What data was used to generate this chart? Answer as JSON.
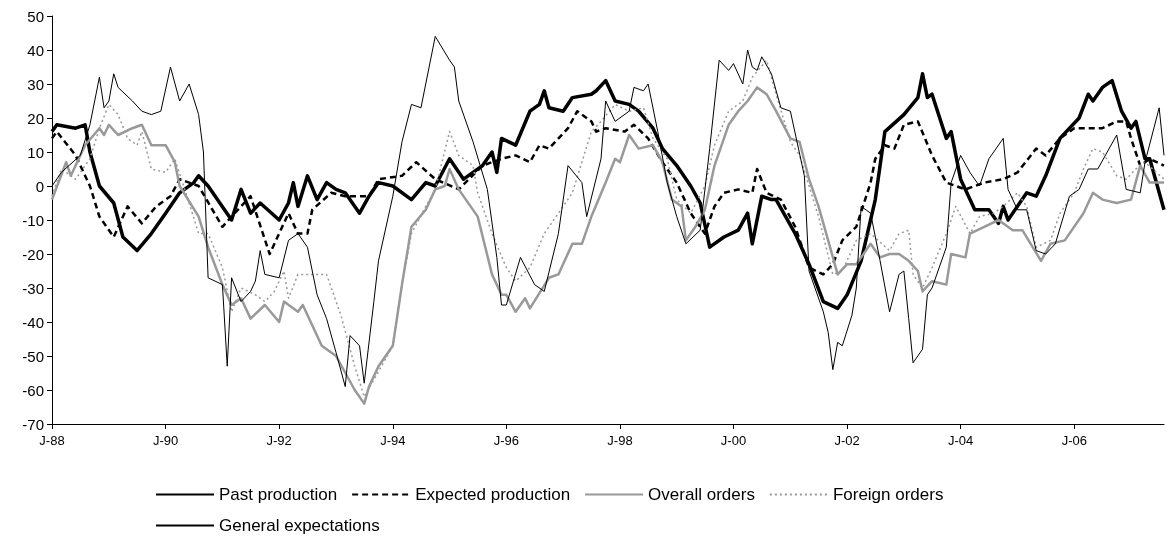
{
  "chart_data": {
    "type": "line",
    "xlim": [
      "1988-01",
      "2007-08"
    ],
    "xticks": [
      {
        "value": "1988-01",
        "label": "J-88"
      },
      {
        "value": "1990-01",
        "label": "J-90"
      },
      {
        "value": "1992-01",
        "label": "J-92"
      },
      {
        "value": "1994-01",
        "label": "J-94"
      },
      {
        "value": "1996-01",
        "label": "J-96"
      },
      {
        "value": "1998-01",
        "label": "J-98"
      },
      {
        "value": "2000-01",
        "label": "J-00"
      },
      {
        "value": "2002-01",
        "label": "J-02"
      },
      {
        "value": "2004-01",
        "label": "J-04"
      },
      {
        "value": "2006-01",
        "label": "J-06"
      }
    ],
    "ylim": [
      -70,
      50
    ],
    "yticks": [
      -70,
      -60,
      -50,
      -40,
      -30,
      -20,
      -10,
      0,
      10,
      20,
      30,
      40,
      50
    ],
    "grid": false,
    "legend": "bottom",
    "marker": "none",
    "series": [
      {
        "name": "Past production",
        "color": "#000000",
        "line_style": "solid",
        "x": [
          "1988-01",
          "1988-02",
          "1988-06",
          "1988-08",
          "1988-09",
          "1988-11",
          "1989-02",
          "1989-04",
          "1989-07",
          "1989-10",
          "1990-01",
          "1990-04",
          "1990-07",
          "1990-08",
          "1990-10",
          "1991-03",
          "1991-05",
          "1991-07",
          "1991-09",
          "1992-01",
          "1992-03",
          "1992-04",
          "1992-05",
          "1992-07",
          "1992-09",
          "1992-11",
          "1993-01",
          "1993-03",
          "1993-06",
          "1993-08",
          "1993-10",
          "1994-01",
          "1994-05",
          "1994-08",
          "1994-10",
          "1995-01",
          "1995-04",
          "1995-08",
          "1995-10",
          "1995-11",
          "1995-12",
          "1996-03",
          "1996-06",
          "1996-08",
          "1996-09",
          "1996-10",
          "1997-01",
          "1997-03",
          "1997-07",
          "1997-08",
          "1997-10",
          "1997-12",
          "1998-03",
          "1998-05",
          "1998-08",
          "1998-10",
          "1999-01",
          "1999-04",
          "1999-06",
          "1999-08",
          "1999-11",
          "2000-02",
          "2000-04",
          "2000-05",
          "2000-07",
          "2000-09",
          "2000-10",
          "2001-02",
          "2001-05",
          "2001-08",
          "2001-11",
          "2002-01",
          "2002-04",
          "2002-07",
          "2002-09",
          "2003-01",
          "2003-04",
          "2003-05",
          "2003-06",
          "2003-07",
          "2003-10",
          "2003-11",
          "2004-01",
          "2004-04",
          "2004-07",
          "2004-09",
          "2004-10",
          "2004-11",
          "2005-03",
          "2005-05",
          "2005-07",
          "2005-10",
          "2006-02",
          "2006-04",
          "2006-05",
          "2006-07",
          "2006-09",
          "2006-11",
          "2007-01",
          "2007-02",
          "2007-04",
          "2007-05",
          "2007-08"
        ],
        "values": [
          16,
          18,
          17,
          18,
          10,
          0,
          -5,
          -15,
          -19,
          -14,
          -8,
          -2,
          1,
          3,
          0,
          -10,
          -1,
          -8,
          -5,
          -10,
          -5,
          1,
          -6,
          3,
          -4,
          1,
          -1,
          -2,
          -8,
          -3,
          1,
          0,
          -4,
          1,
          0,
          8,
          2,
          6,
          10,
          4,
          14,
          12,
          22,
          24,
          28,
          23,
          22,
          26,
          27,
          28,
          31,
          25,
          24,
          22,
          17,
          11,
          6,
          0,
          -5,
          -18,
          -15,
          -13,
          -8,
          -17,
          -3,
          -4,
          -4,
          -14,
          -23,
          -34,
          -36,
          -32,
          -22,
          -4,
          16,
          21,
          26,
          33,
          26,
          27,
          14,
          16,
          2,
          -7,
          -7,
          -11,
          -6,
          -10,
          -2,
          -3,
          3,
          14,
          20,
          27,
          25,
          29,
          31,
          22,
          17,
          19,
          8,
          8,
          -7
        ]
      },
      {
        "name": "Expected production",
        "color": "#000000",
        "line_style": "dashed",
        "x": [
          "1988-01",
          "1988-02",
          "1988-06",
          "1988-09",
          "1988-11",
          "1989-02",
          "1989-05",
          "1989-08",
          "1989-11",
          "1990-02",
          "1990-04",
          "1990-08",
          "1991-01",
          "1991-03",
          "1991-07",
          "1991-11",
          "1992-03",
          "1992-05",
          "1992-07",
          "1992-08",
          "1992-12",
          "1993-03",
          "1993-08",
          "1993-10",
          "1994-03",
          "1994-06",
          "1994-10",
          "1995-03",
          "1995-08",
          "1995-12",
          "1996-03",
          "1996-06",
          "1996-08",
          "1996-10",
          "1997-02",
          "1997-04",
          "1997-07",
          "1997-08",
          "1997-10",
          "1998-02",
          "1998-04",
          "1998-07",
          "1998-10",
          "1999-01",
          "1999-04",
          "1999-07",
          "1999-09",
          "1999-11",
          "2000-02",
          "2000-05",
          "2000-06",
          "2000-08",
          "2000-11",
          "2001-02",
          "2001-05",
          "2001-08",
          "2001-10",
          "2001-12",
          "2002-03",
          "2002-06",
          "2002-07",
          "2002-09",
          "2002-11",
          "2003-01",
          "2003-04",
          "2003-07",
          "2003-10",
          "2004-02",
          "2004-06",
          "2004-10",
          "2005-01",
          "2005-05",
          "2005-07",
          "2005-10",
          "2006-01",
          "2006-05",
          "2006-07",
          "2006-10",
          "2006-12",
          "2007-01",
          "2007-03",
          "2007-05",
          "2007-08"
        ],
        "values": [
          14,
          16,
          9,
          0,
          -9,
          -15,
          -6,
          -11,
          -6,
          -3,
          2,
          0,
          -12,
          -9,
          -3,
          -20,
          -8,
          -14,
          -14,
          -7,
          -2,
          -3,
          -3,
          2,
          3,
          7,
          2,
          -1,
          6,
          8,
          9,
          7,
          12,
          11,
          17,
          22,
          19,
          16,
          17,
          16,
          18,
          14,
          7,
          1,
          -8,
          -14,
          -6,
          -2,
          -1,
          -2,
          5,
          -2,
          -4,
          -12,
          -24,
          -26,
          -23,
          -16,
          -12,
          1,
          8,
          12,
          11,
          18,
          19,
          9,
          1,
          -1,
          1,
          2,
          4,
          11,
          9,
          14,
          17,
          17,
          17,
          19,
          19,
          14,
          6,
          8,
          6
        ]
      },
      {
        "name": "Overall orders",
        "color": "#999999",
        "line_style": "solid",
        "x": [
          "1988-01",
          "1988-04",
          "1988-05",
          "1988-08",
          "1988-11",
          "1988-12",
          "1989-01",
          "1989-03",
          "1989-06",
          "1989-08",
          "1989-10",
          "1990-01",
          "1990-03",
          "1990-04",
          "1990-08",
          "1990-10",
          "1991-01",
          "1991-03",
          "1991-05",
          "1991-07",
          "1991-10",
          "1992-01",
          "1992-02",
          "1992-05",
          "1992-06",
          "1992-10",
          "1993-01",
          "1993-05",
          "1993-07",
          "1993-08",
          "1993-10",
          "1994-01",
          "1994-03",
          "1994-05",
          "1994-08",
          "1994-10",
          "1994-12",
          "1995-01",
          "1995-03",
          "1995-07",
          "1995-10",
          "1995-12",
          "1996-01",
          "1996-03",
          "1996-05",
          "1996-06",
          "1996-10",
          "1996-12",
          "1997-03",
          "1997-05",
          "1997-07",
          "1997-10",
          "1997-12",
          "1998-01",
          "1998-03",
          "1998-05",
          "1998-08",
          "1998-10",
          "1998-12",
          "1999-02",
          "1999-03",
          "1999-05",
          "1999-07",
          "1999-09",
          "1999-12",
          "2000-02",
          "2000-04",
          "2000-06",
          "2000-08",
          "2000-10",
          "2001-01",
          "2001-03",
          "2001-05",
          "2001-07",
          "2001-09",
          "2001-11",
          "2002-01",
          "2002-03",
          "2002-06",
          "2002-08",
          "2002-10",
          "2002-12",
          "2003-02",
          "2003-04",
          "2003-05",
          "2003-07",
          "2003-10",
          "2003-11",
          "2004-02",
          "2004-03",
          "2004-06",
          "2004-09",
          "2004-12",
          "2005-02",
          "2005-06",
          "2005-08",
          "2005-11",
          "2006-03",
          "2006-05",
          "2006-07",
          "2006-10",
          "2007-01",
          "2007-03",
          "2007-05",
          "2007-08"
        ],
        "values": [
          -4,
          7,
          3,
          12,
          17,
          15,
          18,
          15,
          17,
          18,
          12,
          12,
          7,
          0,
          -9,
          -18,
          -29,
          -35,
          -33,
          -39,
          -35,
          -40,
          -34,
          -37,
          -35,
          -47,
          -50,
          -60,
          -64,
          -59,
          -53,
          -47,
          -29,
          -12,
          -7,
          -1,
          0,
          5,
          -1,
          -9,
          -26,
          -32,
          -32,
          -37,
          -33,
          -36,
          -27,
          -26,
          -17,
          -17,
          -9,
          1,
          8,
          7,
          15,
          11,
          12,
          7,
          -4,
          -6,
          -16,
          -12,
          -7,
          6,
          18,
          22,
          25,
          29,
          27,
          22,
          14,
          13,
          2,
          -6,
          -16,
          -26,
          -23,
          -23,
          -17,
          -21,
          -20,
          -20,
          -22,
          -25,
          -31,
          -28,
          -29,
          -20,
          -21,
          -14,
          -12,
          -10,
          -13,
          -13,
          -22,
          -17,
          -16,
          -8,
          -2,
          -4,
          -5,
          -4,
          6,
          1,
          1
        ]
      },
      {
        "name": "Foreign orders",
        "color": "#999999",
        "line_style": "dotted",
        "x": [
          "1988-01",
          "1988-03",
          "1988-06",
          "1988-09",
          "1988-11",
          "1989-01",
          "1989-03",
          "1989-05",
          "1989-07",
          "1989-08",
          "1989-10",
          "1990-01",
          "1990-03",
          "1990-06",
          "1990-08",
          "1990-10",
          "1991-01",
          "1991-03",
          "1991-05",
          "1991-08",
          "1991-10",
          "1991-12",
          "1992-02",
          "1992-03",
          "1992-05",
          "1992-08",
          "1992-11",
          "1993-02",
          "1993-05",
          "1993-07",
          "1993-09",
          "1994-01",
          "1994-03",
          "1994-05",
          "1994-08",
          "1994-10",
          "1995-01",
          "1995-03",
          "1995-06",
          "1995-07",
          "1995-10",
          "1996-01",
          "1996-03",
          "1996-06",
          "1996-09",
          "1996-12",
          "1997-03",
          "1997-07",
          "1997-09",
          "1997-12",
          "1998-03",
          "1998-06",
          "1998-08",
          "1998-11",
          "1999-01",
          "1999-04",
          "1999-07",
          "1999-09",
          "1999-12",
          "2000-03",
          "2000-05",
          "2000-08",
          "2000-10",
          "2001-01",
          "2001-03",
          "2001-07",
          "2001-10",
          "2001-12",
          "2002-03",
          "2002-06",
          "2002-10",
          "2002-12",
          "2003-02",
          "2003-03",
          "2003-05",
          "2003-07",
          "2003-10",
          "2003-12",
          "2004-03",
          "2004-05",
          "2004-08",
          "2004-10",
          "2005-01",
          "2005-03",
          "2005-05",
          "2005-08",
          "2005-10",
          "2006-01",
          "2006-03",
          "2006-05",
          "2006-07",
          "2006-10",
          "2006-12",
          "2007-02",
          "2007-04",
          "2007-08"
        ],
        "values": [
          -3,
          5,
          2,
          8,
          17,
          24,
          21,
          14,
          12,
          16,
          5,
          4,
          8,
          -5,
          -14,
          -14,
          -24,
          -37,
          -30,
          -32,
          -34,
          -31,
          -25,
          -33,
          -26,
          -26,
          -26,
          -38,
          -53,
          -62,
          -57,
          -47,
          -29,
          -14,
          -6,
          -1,
          16,
          9,
          6,
          -2,
          -14,
          -24,
          -28,
          -24,
          -14,
          -8,
          -2,
          16,
          19,
          24,
          22,
          23,
          14,
          8,
          -4,
          -8,
          0,
          12,
          22,
          25,
          32,
          37,
          27,
          13,
          9,
          -9,
          -26,
          -25,
          -16,
          -14,
          -19,
          -14,
          -13,
          -26,
          -30,
          -24,
          -14,
          -6,
          -14,
          -9,
          -8,
          -6,
          -2,
          -6,
          -18,
          -16,
          -8,
          -2,
          5,
          11,
          10,
          3,
          2,
          5,
          7,
          2
        ]
      },
      {
        "name": "General expectations",
        "color": "#000000",
        "line_style": "solid",
        "x": [
          "1988-01",
          "1988-03",
          "1988-07",
          "1988-09",
          "1988-11",
          "1988-12",
          "1989-01",
          "1989-02",
          "1989-03",
          "1989-06",
          "1989-08",
          "1989-10",
          "1989-12",
          "1990-02",
          "1990-04",
          "1990-06",
          "1990-08",
          "1990-09",
          "1990-10",
          "1991-01",
          "1991-02",
          "1991-03",
          "1991-05",
          "1991-07",
          "1991-08",
          "1991-09",
          "1991-10",
          "1992-01",
          "1992-03",
          "1992-05",
          "1992-07",
          "1992-09",
          "1992-11",
          "1993-01",
          "1993-03",
          "1993-04",
          "1993-06",
          "1993-07",
          "1993-09",
          "1993-10",
          "1994-01",
          "1994-03",
          "1994-05",
          "1994-07",
          "1994-10",
          "1995-01",
          "1995-02",
          "1995-03",
          "1995-06",
          "1995-09",
          "1995-11",
          "1995-12",
          "1996-01",
          "1996-04",
          "1996-07",
          "1996-09",
          "1996-12",
          "1997-02",
          "1997-05",
          "1997-06",
          "1997-09",
          "1997-10",
          "1997-12",
          "1998-03",
          "1998-04",
          "1998-06",
          "1998-07",
          "1998-09",
          "1998-11",
          "1999-01",
          "1999-03",
          "1999-06",
          "1999-08",
          "1999-10",
          "1999-12",
          "2000-01",
          "2000-03",
          "2000-04",
          "2000-05",
          "2000-06",
          "2000-07",
          "2000-09",
          "2000-11",
          "2001-01",
          "2001-04",
          "2001-05",
          "2001-08",
          "2001-09",
          "2001-10",
          "2001-11",
          "2001-12",
          "2002-02",
          "2002-03",
          "2002-04",
          "2002-06",
          "2002-08",
          "2002-10",
          "2002-12",
          "2003-01",
          "2003-02",
          "2003-03",
          "2003-05",
          "2003-06",
          "2003-07",
          "2003-10",
          "2003-11",
          "2004-01",
          "2004-03",
          "2004-05",
          "2004-07",
          "2004-10",
          "2004-11",
          "2005-01",
          "2005-03",
          "2005-05",
          "2005-07",
          "2005-09",
          "2005-12",
          "2006-02",
          "2006-04",
          "2006-06",
          "2006-10",
          "2006-12",
          "2007-03",
          "2007-04",
          "2007-07",
          "2007-08"
        ],
        "values": [
          0,
          4,
          9,
          18,
          32,
          23,
          25,
          33,
          29,
          25,
          22,
          21,
          22,
          35,
          25,
          30,
          21,
          10,
          -27,
          -29,
          -53,
          -27,
          -34,
          -31,
          -28,
          -19,
          -26,
          -27,
          -16,
          -14,
          -18,
          -32,
          -39,
          -49,
          -59,
          -44,
          -47,
          -58,
          -34,
          -22,
          -3,
          13,
          24,
          23,
          44,
          37,
          35,
          25,
          13,
          -1,
          -21,
          -35,
          -35,
          -21,
          -29,
          -31,
          -14,
          6,
          1,
          -9,
          8,
          25,
          19,
          22,
          29,
          28,
          30,
          16,
          1,
          -9,
          -17,
          -13,
          11,
          37,
          34,
          36,
          30,
          40,
          35,
          34,
          38,
          33,
          23,
          22,
          3,
          -25,
          -37,
          -43,
          -54,
          -46,
          -47,
          -38,
          -30,
          -6,
          -8,
          -22,
          -37,
          -26,
          -25,
          -39,
          -52,
          -48,
          -32,
          -30,
          -18,
          1,
          9,
          4,
          0,
          8,
          14,
          -1,
          -7,
          -7,
          -19,
          -20,
          -17,
          -3,
          -1,
          5,
          5,
          15,
          -1,
          -2,
          7,
          23,
          9
        ]
      }
    ]
  }
}
